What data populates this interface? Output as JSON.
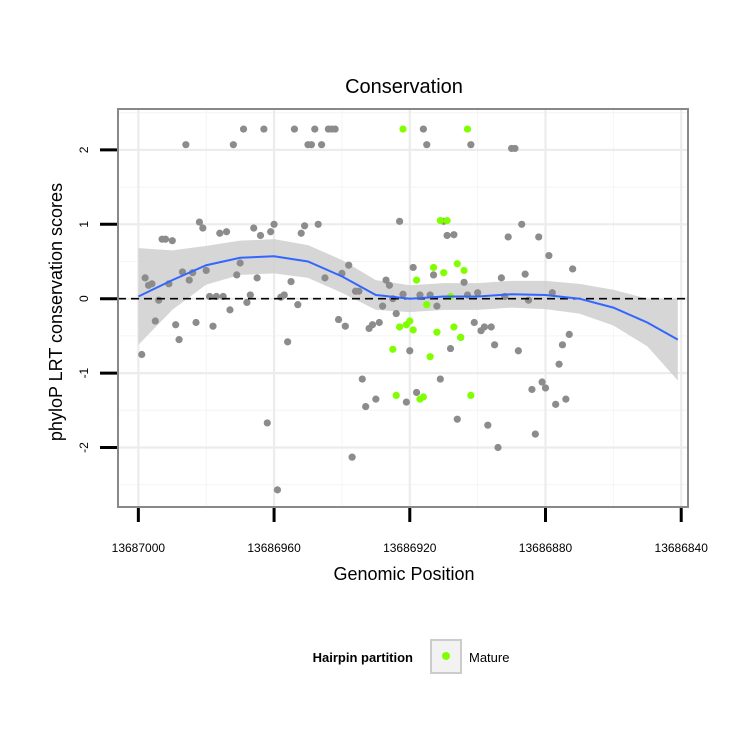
{
  "chart_data": {
    "type": "scatter",
    "title": "Conservation",
    "xlabel": "Genomic Position",
    "ylabel": "phyloP LRT conservation scores",
    "x_reversed": true,
    "xlim": [
      13687006,
      13686838
    ],
    "ylim": [
      -2.8,
      2.55
    ],
    "x_ticks": [
      13687000,
      13686960,
      13686920,
      13686880,
      13686840
    ],
    "y_ticks": [
      -2,
      -1,
      0,
      1,
      2
    ],
    "reference_line": {
      "y": 0,
      "style": "dashed",
      "color": "#000000"
    },
    "grid": true,
    "colors": {
      "other": "#8c8c8c",
      "mature": "#7fff00",
      "smooth": "#3366ff",
      "band": "#cfcfcf",
      "panel_border": "#888888"
    },
    "legend": {
      "title": "Hairpin partition",
      "placement": "bottom",
      "entries": [
        {
          "label": "Mature",
          "color": "#7fff00"
        }
      ]
    },
    "series": [
      {
        "name": "other",
        "points": [
          [
            13686999,
            -0.75
          ],
          [
            13686998,
            0.28
          ],
          [
            13686997,
            0.18
          ],
          [
            13686996,
            0.2
          ],
          [
            13686995,
            -0.3
          ],
          [
            13686994,
            -0.02
          ],
          [
            13686993,
            0.8
          ],
          [
            13686992,
            0.8
          ],
          [
            13686991,
            0.2
          ],
          [
            13686990,
            0.78
          ],
          [
            13686989,
            -0.35
          ],
          [
            13686988,
            -0.55
          ],
          [
            13686987,
            0.36
          ],
          [
            13686986,
            2.07
          ],
          [
            13686985,
            0.25
          ],
          [
            13686984,
            0.35
          ],
          [
            13686983,
            -0.32
          ],
          [
            13686982,
            1.03
          ],
          [
            13686981,
            0.95
          ],
          [
            13686980,
            0.38
          ],
          [
            13686979,
            0.03
          ],
          [
            13686978,
            -0.37
          ],
          [
            13686977,
            0.03
          ],
          [
            13686976,
            0.88
          ],
          [
            13686975,
            0.03
          ],
          [
            13686974,
            0.9
          ],
          [
            13686973,
            -0.15
          ],
          [
            13686972,
            2.07
          ],
          [
            13686971,
            0.32
          ],
          [
            13686970,
            0.48
          ],
          [
            13686969,
            2.28
          ],
          [
            13686968,
            -0.05
          ],
          [
            13686967,
            0.05
          ],
          [
            13686966,
            0.95
          ],
          [
            13686965,
            0.28
          ],
          [
            13686964,
            0.85
          ],
          [
            13686963,
            2.28
          ],
          [
            13686962,
            -1.67
          ],
          [
            13686961,
            0.9
          ],
          [
            13686960,
            1.0
          ],
          [
            13686959,
            -2.57
          ],
          [
            13686958,
            0.02
          ],
          [
            13686957,
            0.05
          ],
          [
            13686956,
            -0.58
          ],
          [
            13686955,
            0.23
          ],
          [
            13686954,
            2.28
          ],
          [
            13686953,
            -0.08
          ],
          [
            13686952,
            0.88
          ],
          [
            13686951,
            0.98
          ],
          [
            13686950,
            2.07
          ],
          [
            13686949,
            2.07
          ],
          [
            13686948,
            2.28
          ],
          [
            13686947,
            1.0
          ],
          [
            13686946,
            2.07
          ],
          [
            13686945,
            0.28
          ],
          [
            13686944,
            2.28
          ],
          [
            13686943,
            2.28
          ],
          [
            13686942,
            2.28
          ],
          [
            13686941,
            -0.28
          ],
          [
            13686940,
            0.34
          ],
          [
            13686939,
            -0.37
          ],
          [
            13686938,
            0.45
          ],
          [
            13686937,
            -2.13
          ],
          [
            13686936,
            0.1
          ],
          [
            13686935,
            0.1
          ],
          [
            13686934,
            -1.08
          ],
          [
            13686933,
            -1.45
          ],
          [
            13686932,
            -0.4
          ],
          [
            13686931,
            -0.35
          ],
          [
            13686930,
            -1.35
          ],
          [
            13686929,
            -0.32
          ],
          [
            13686928,
            -0.1
          ],
          [
            13686927,
            0.25
          ],
          [
            13686926,
            0.18
          ],
          [
            13686925,
            0.0
          ],
          [
            13686924,
            -0.2
          ],
          [
            13686923,
            1.04
          ],
          [
            13686922,
            0.06
          ],
          [
            13686921,
            -1.39
          ],
          [
            13686920,
            -0.7
          ],
          [
            13686919,
            0.42
          ],
          [
            13686918,
            -1.26
          ],
          [
            13686917,
            0.05
          ],
          [
            13686916,
            2.28
          ],
          [
            13686915,
            2.07
          ],
          [
            13686914,
            0.05
          ],
          [
            13686913,
            0.32
          ],
          [
            13686912,
            -0.1
          ],
          [
            13686911,
            -1.08
          ],
          [
            13686910,
            1.04
          ],
          [
            13686909,
            0.85
          ],
          [
            13686908,
            -0.67
          ],
          [
            13686907,
            0.86
          ],
          [
            13686906,
            -1.62
          ],
          [
            13686905,
            -0.52
          ],
          [
            13686904,
            0.22
          ],
          [
            13686903,
            0.05
          ],
          [
            13686902,
            2.07
          ],
          [
            13686901,
            -0.32
          ],
          [
            13686900,
            0.08
          ],
          [
            13686899,
            -0.43
          ],
          [
            13686898,
            -0.38
          ],
          [
            13686897,
            -1.7
          ],
          [
            13686896,
            -0.38
          ],
          [
            13686895,
            -0.62
          ],
          [
            13686894,
            -2.0
          ],
          [
            13686893,
            0.28
          ],
          [
            13686892,
            0.03
          ],
          [
            13686891,
            0.83
          ],
          [
            13686890,
            2.02
          ],
          [
            13686889,
            2.02
          ],
          [
            13686888,
            -0.7
          ],
          [
            13686887,
            1.0
          ],
          [
            13686886,
            0.33
          ],
          [
            13686885,
            -0.02
          ],
          [
            13686884,
            -1.22
          ],
          [
            13686883,
            -1.82
          ],
          [
            13686882,
            0.83
          ],
          [
            13686881,
            -1.12
          ],
          [
            13686880,
            -1.2
          ],
          [
            13686879,
            0.58
          ],
          [
            13686878,
            0.08
          ],
          [
            13686877,
            -1.42
          ],
          [
            13686876,
            -0.88
          ],
          [
            13686875,
            -0.62
          ],
          [
            13686874,
            -1.35
          ],
          [
            13686873,
            -0.48
          ],
          [
            13686872,
            0.4
          ]
        ]
      },
      {
        "name": "Mature",
        "points": [
          [
            13686925,
            -0.68
          ],
          [
            13686924,
            -1.3
          ],
          [
            13686923,
            -0.38
          ],
          [
            13686922,
            2.28
          ],
          [
            13686921,
            -0.35
          ],
          [
            13686920,
            -0.3
          ],
          [
            13686919,
            -0.42
          ],
          [
            13686918,
            0.25
          ],
          [
            13686917,
            -1.35
          ],
          [
            13686916,
            -1.32
          ],
          [
            13686915,
            -0.08
          ],
          [
            13686914,
            -0.78
          ],
          [
            13686913,
            0.42
          ],
          [
            13686912,
            -0.45
          ],
          [
            13686911,
            1.05
          ],
          [
            13686910,
            0.35
          ],
          [
            13686909,
            1.05
          ],
          [
            13686908,
            0.03
          ],
          [
            13686907,
            -0.38
          ],
          [
            13686906,
            0.47
          ],
          [
            13686905,
            -0.52
          ],
          [
            13686904,
            0.38
          ],
          [
            13686903,
            2.28
          ],
          [
            13686902,
            -1.3
          ]
        ]
      }
    ],
    "smooth": {
      "x": [
        13687000,
        13686990,
        13686980,
        13686970,
        13686960,
        13686950,
        13686940,
        13686930,
        13686920,
        13686910,
        13686900,
        13686890,
        13686880,
        13686870,
        13686860,
        13686850,
        13686841
      ],
      "y": [
        0.03,
        0.25,
        0.45,
        0.55,
        0.57,
        0.5,
        0.3,
        0.05,
        0.0,
        0.03,
        0.03,
        0.06,
        0.05,
        0.0,
        -0.12,
        -0.32,
        -0.55
      ],
      "band_half_width": [
        0.65,
        0.4,
        0.26,
        0.23,
        0.23,
        0.22,
        0.22,
        0.2,
        0.18,
        0.18,
        0.18,
        0.18,
        0.19,
        0.2,
        0.24,
        0.32,
        0.55
      ]
    }
  }
}
